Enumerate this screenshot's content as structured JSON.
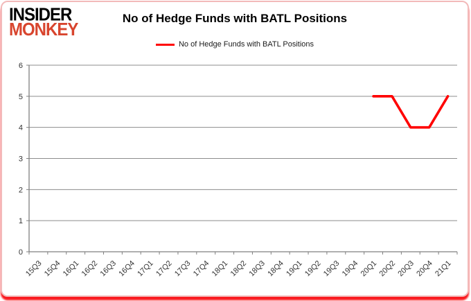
{
  "window": {
    "border_color": "#f2baba",
    "bottom_glow_color": "#fa0007",
    "background": "#ffffff"
  },
  "logo": {
    "line1": "INSIDER",
    "line2": "MONKEY",
    "line1_color": "#000000",
    "line2_color": "#d8452e"
  },
  "header": {
    "title": "No of Hedge Funds with BATL Positions"
  },
  "legend": {
    "label": "No of Hedge Funds with BATL Positions",
    "line_color": "#ff0000"
  },
  "chart_data": {
    "type": "line",
    "title": "No of Hedge Funds with BATL Positions",
    "xlabel": "",
    "ylabel": "",
    "categories": [
      "15Q3",
      "15Q4",
      "16Q1",
      "16Q2",
      "16Q3",
      "16Q4",
      "17Q1",
      "17Q2",
      "17Q3",
      "17Q4",
      "18Q1",
      "18Q2",
      "18Q3",
      "18Q4",
      "19Q1",
      "19Q2",
      "19Q3",
      "19Q4",
      "20Q1",
      "20Q2",
      "20Q3",
      "20Q4",
      "21Q1"
    ],
    "series": [
      {
        "name": "No of Hedge Funds with BATL Positions",
        "color": "#ff0000",
        "values": [
          null,
          null,
          null,
          null,
          null,
          null,
          null,
          null,
          null,
          null,
          null,
          null,
          null,
          null,
          null,
          null,
          null,
          null,
          5,
          5,
          4,
          4,
          5
        ]
      }
    ],
    "ylim": [
      0,
      6
    ],
    "yticks": [
      0,
      1,
      2,
      3,
      4,
      5,
      6
    ],
    "grid": "horizontal",
    "grid_color": "#8c8c8c",
    "axis_color": "#7f7f7f",
    "tick_label_color": "#333333",
    "legend_position": "top"
  }
}
